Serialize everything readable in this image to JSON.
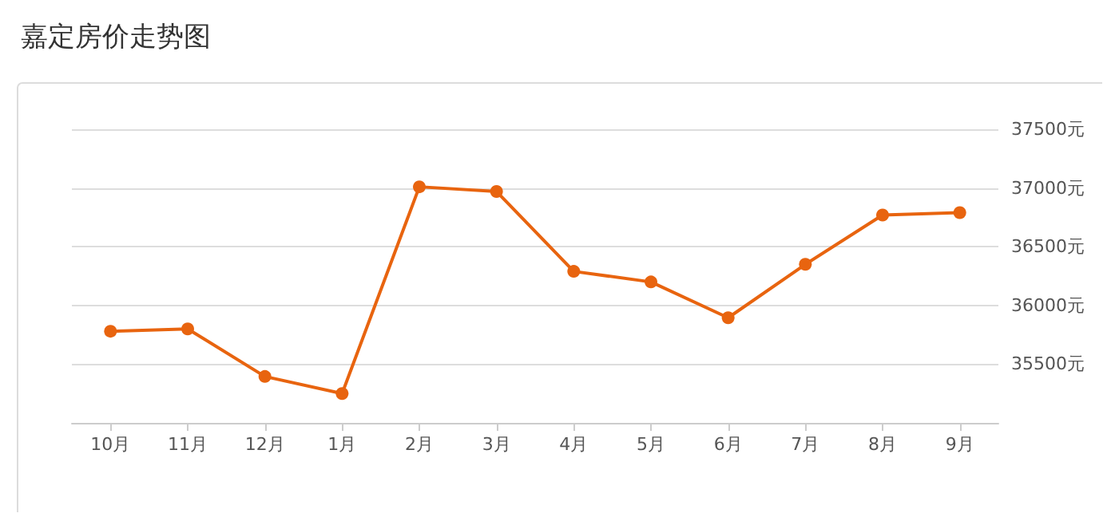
{
  "chart_data": {
    "type": "line",
    "title": "嘉定房价走势图",
    "categories": [
      "10月",
      "11月",
      "12月",
      "1月",
      "2月",
      "3月",
      "4月",
      "5月",
      "6月",
      "7月",
      "8月",
      "9月"
    ],
    "series": [
      {
        "color": "#e8640f",
        "values": [
          35780,
          35800,
          35395,
          35250,
          37010,
          36970,
          36290,
          36200,
          35895,
          36350,
          36770,
          36790
        ]
      }
    ],
    "ylim": [
      35000,
      37500
    ],
    "yticks": [
      {
        "value": 35000,
        "label": null
      },
      {
        "value": 35500,
        "label": "35500元"
      },
      {
        "value": 36000,
        "label": "36000元"
      },
      {
        "value": 36500,
        "label": "36500元"
      },
      {
        "value": 37000,
        "label": "37000元"
      },
      {
        "value": 37500,
        "label": "37500元"
      }
    ],
    "grid": "y",
    "marker": "circle",
    "line_style": "solid"
  }
}
